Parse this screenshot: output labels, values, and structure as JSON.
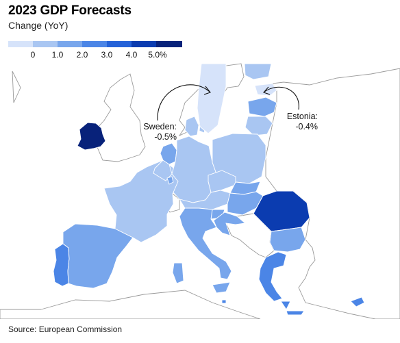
{
  "header": {
    "title": "2023 GDP Forecasts",
    "subtitle": "Change (YoY)"
  },
  "legend": {
    "labels": [
      "0",
      "1.0",
      "2.0",
      "3.0",
      "4.0",
      "5.0%"
    ],
    "colors": [
      "#d6e3fa",
      "#a9c6f2",
      "#78a6ec",
      "#4b85e6",
      "#2462d8",
      "#0b3cb0",
      "#08227a"
    ]
  },
  "colors": {
    "land_outside": "#ffffff",
    "border": "#9a9a9a",
    "eu_border": "#ffffff",
    "sea": "#ffffff"
  },
  "chart_data": {
    "type": "choropleth",
    "title": "2023 GDP Forecasts",
    "subtitle": "Change (YoY)",
    "units": "%",
    "legend_bins": [
      "<0",
      "0-1.0",
      "1.0-2.0",
      "2.0-3.0",
      "3.0-4.0",
      "4.0-5.0",
      ">5.0"
    ],
    "regions": [
      {
        "name": "Ireland",
        "bin": ">5.0"
      },
      {
        "name": "Sweden",
        "value": -0.5,
        "bin": "<0"
      },
      {
        "name": "Estonia",
        "value": -0.4,
        "bin": "<0"
      },
      {
        "name": "Romania",
        "bin": "4.0-5.0"
      },
      {
        "name": "Portugal",
        "bin": "2.0-3.0"
      },
      {
        "name": "Spain",
        "bin": "1.0-2.0"
      },
      {
        "name": "France",
        "bin": "0-1.0"
      },
      {
        "name": "Germany",
        "bin": "0-1.0"
      },
      {
        "name": "Poland",
        "bin": "0-1.0"
      },
      {
        "name": "Italy",
        "bin": "1.0-2.0"
      },
      {
        "name": "Greece",
        "bin": "2.0-3.0"
      },
      {
        "name": "Cyprus",
        "bin": "2.0-3.0"
      },
      {
        "name": "Bulgaria",
        "bin": "1.0-2.0"
      },
      {
        "name": "Hungary",
        "bin": "1.0-2.0"
      },
      {
        "name": "Croatia",
        "bin": "1.0-2.0"
      },
      {
        "name": "Slovenia",
        "bin": "1.0-2.0"
      },
      {
        "name": "Austria",
        "bin": "0-1.0"
      },
      {
        "name": "Czech Republic",
        "bin": "0-1.0"
      },
      {
        "name": "Slovakia",
        "bin": "1.0-2.0"
      },
      {
        "name": "Netherlands",
        "bin": "1.0-2.0"
      },
      {
        "name": "Belgium",
        "bin": "0-1.0"
      },
      {
        "name": "Luxembourg",
        "bin": "1.0-2.0"
      },
      {
        "name": "Denmark",
        "bin": "0-1.0"
      },
      {
        "name": "Finland",
        "bin": "0-1.0"
      },
      {
        "name": "Latvia",
        "bin": "1.0-2.0"
      },
      {
        "name": "Lithuania",
        "bin": "0-1.0"
      },
      {
        "name": "Malta",
        "bin": "2.0-3.0"
      }
    ],
    "annotations": [
      {
        "name": "Sweden",
        "label": "Sweden:",
        "value_label": "-0.5%"
      },
      {
        "name": "Estonia",
        "label": "Estonia:",
        "value_label": "-0.4%"
      }
    ]
  },
  "footer": {
    "source": "Source: European Commission"
  }
}
